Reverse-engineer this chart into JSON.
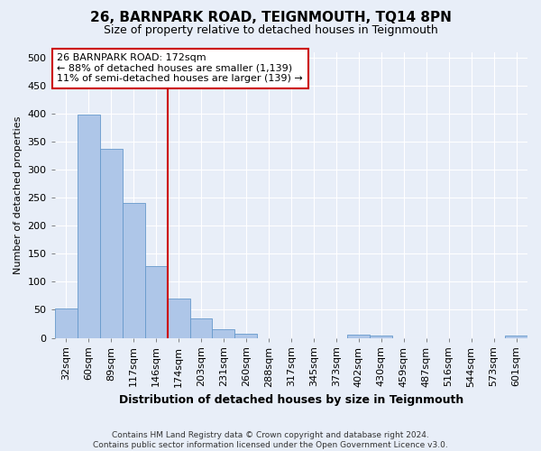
{
  "title": "26, BARNPARK ROAD, TEIGNMOUTH, TQ14 8PN",
  "subtitle": "Size of property relative to detached houses in Teignmouth",
  "xlabel": "Distribution of detached houses by size in Teignmouth",
  "ylabel": "Number of detached properties",
  "bar_labels": [
    "32sqm",
    "60sqm",
    "89sqm",
    "117sqm",
    "146sqm",
    "174sqm",
    "203sqm",
    "231sqm",
    "260sqm",
    "288sqm",
    "317sqm",
    "345sqm",
    "373sqm",
    "402sqm",
    "430sqm",
    "459sqm",
    "487sqm",
    "516sqm",
    "544sqm",
    "573sqm",
    "601sqm"
  ],
  "bar_values": [
    52,
    398,
    337,
    240,
    128,
    70,
    35,
    16,
    7,
    0,
    0,
    0,
    0,
    6,
    4,
    0,
    0,
    0,
    0,
    0,
    4
  ],
  "bar_color": "#aec6e8",
  "bar_edge_color": "#6699cc",
  "vline_x": 4.5,
  "vline_color": "#cc0000",
  "ylim": [
    0,
    510
  ],
  "yticks": [
    0,
    50,
    100,
    150,
    200,
    250,
    300,
    350,
    400,
    450,
    500
  ],
  "annotation_title": "26 BARNPARK ROAD: 172sqm",
  "annotation_line1": "← 88% of detached houses are smaller (1,139)",
  "annotation_line2": "11% of semi-detached houses are larger (139) →",
  "annotation_box_color": "#ffffff",
  "annotation_box_edge": "#cc0000",
  "footer1": "Contains HM Land Registry data © Crown copyright and database right 2024.",
  "footer2": "Contains public sector information licensed under the Open Government Licence v3.0.",
  "background_color": "#e8eef8",
  "grid_color": "#ffffff",
  "title_fontsize": 11,
  "subtitle_fontsize": 9,
  "xlabel_fontsize": 9,
  "ylabel_fontsize": 8,
  "tick_fontsize": 8,
  "ann_fontsize": 8
}
